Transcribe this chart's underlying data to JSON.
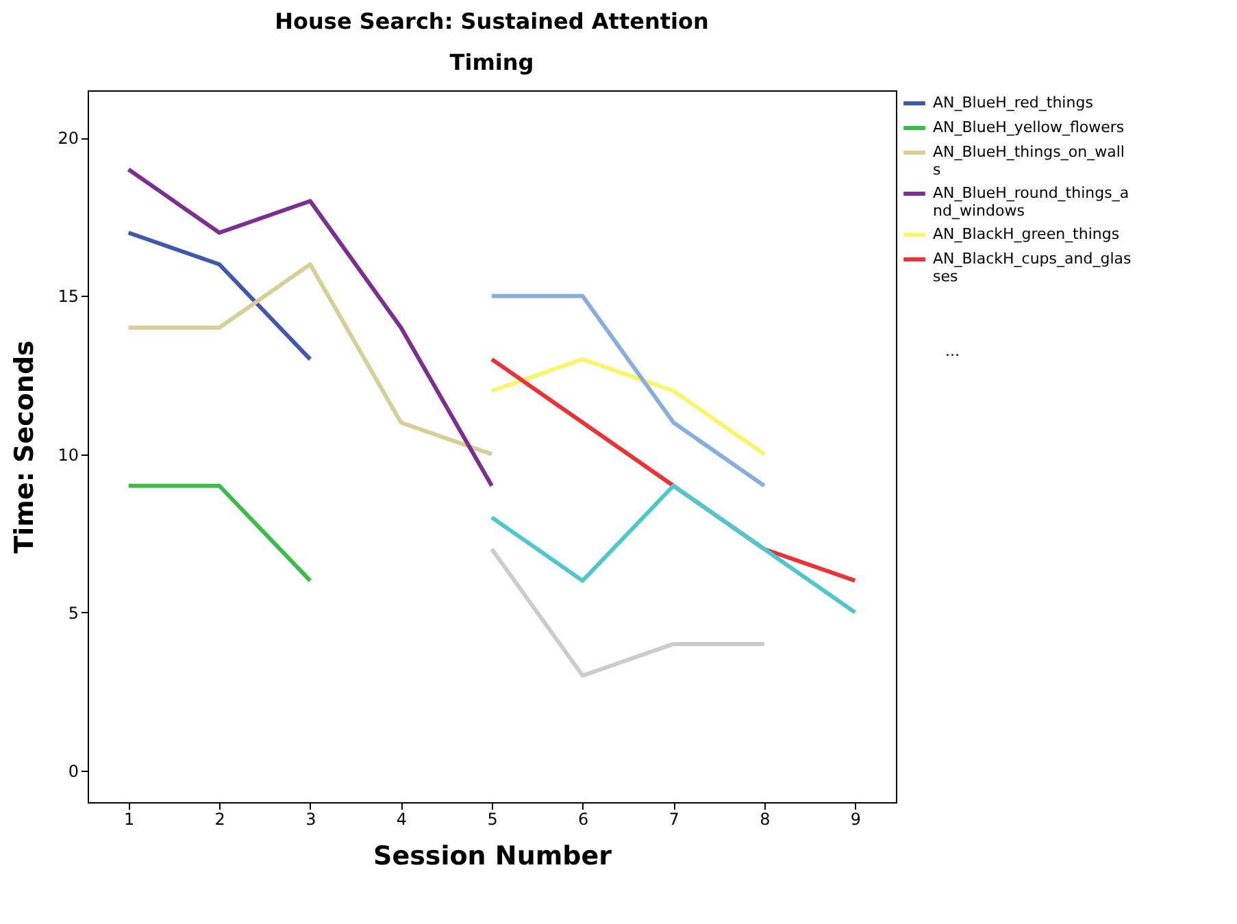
{
  "chart_data": {
    "type": "line",
    "title": "House Search: Sustained Attention",
    "subtitle": "Timing",
    "xlabel": "Session Number",
    "ylabel": "Time: Seconds",
    "x": [
      1,
      2,
      3,
      4,
      5,
      6,
      7,
      8,
      9
    ],
    "series": [
      {
        "name": "AN_BlueH_red_things",
        "color": "#3e58ac",
        "values": [
          17,
          16,
          13,
          null,
          null,
          null,
          null,
          null,
          null
        ]
      },
      {
        "name": "AN_BlueH_yellow_flowers",
        "color": "#3dbb4a",
        "values": [
          9,
          9,
          6,
          null,
          null,
          null,
          null,
          null,
          null
        ]
      },
      {
        "name": "AN_BlueH_things_on_walls",
        "color": "#d5cf98",
        "values": [
          14,
          14,
          16,
          11,
          10,
          null,
          null,
          null,
          null
        ]
      },
      {
        "name": "AN_BlueH_round_things_and_windows",
        "color": "#7b2f8e",
        "values": [
          19,
          17,
          18,
          14,
          9,
          null,
          null,
          null,
          null
        ]
      },
      {
        "name": "AN_BlackH_green_things",
        "color": "#f8f66a",
        "values": [
          null,
          null,
          null,
          null,
          12,
          13,
          12,
          10,
          null
        ]
      },
      {
        "name": "AN_BlackH_cups_and_glasses",
        "color": "#ed3237",
        "values": [
          null,
          null,
          null,
          null,
          13,
          11,
          9,
          7,
          6
        ]
      },
      {
        "color": "#8aaedc",
        "values": [
          null,
          null,
          null,
          null,
          15,
          15,
          11,
          9,
          null
        ]
      },
      {
        "color": "#4ec8cc",
        "values": [
          null,
          null,
          null,
          null,
          8,
          6,
          9,
          7,
          5
        ]
      },
      {
        "color": "#cccccc",
        "values": [
          null,
          null,
          null,
          null,
          7,
          3,
          4,
          4,
          null
        ]
      }
    ],
    "annotations": [
      "..."
    ],
    "xlim": [
      0.55,
      9.45
    ],
    "xticks": [
      1,
      2,
      3,
      4,
      5,
      6,
      7,
      8,
      9
    ],
    "ylim": [
      -1,
      21.5
    ],
    "yticks": [
      0,
      5,
      10,
      15,
      20
    ],
    "legend": "top right",
    "marker": "none",
    "line_style": "solid",
    "grid": false
  }
}
